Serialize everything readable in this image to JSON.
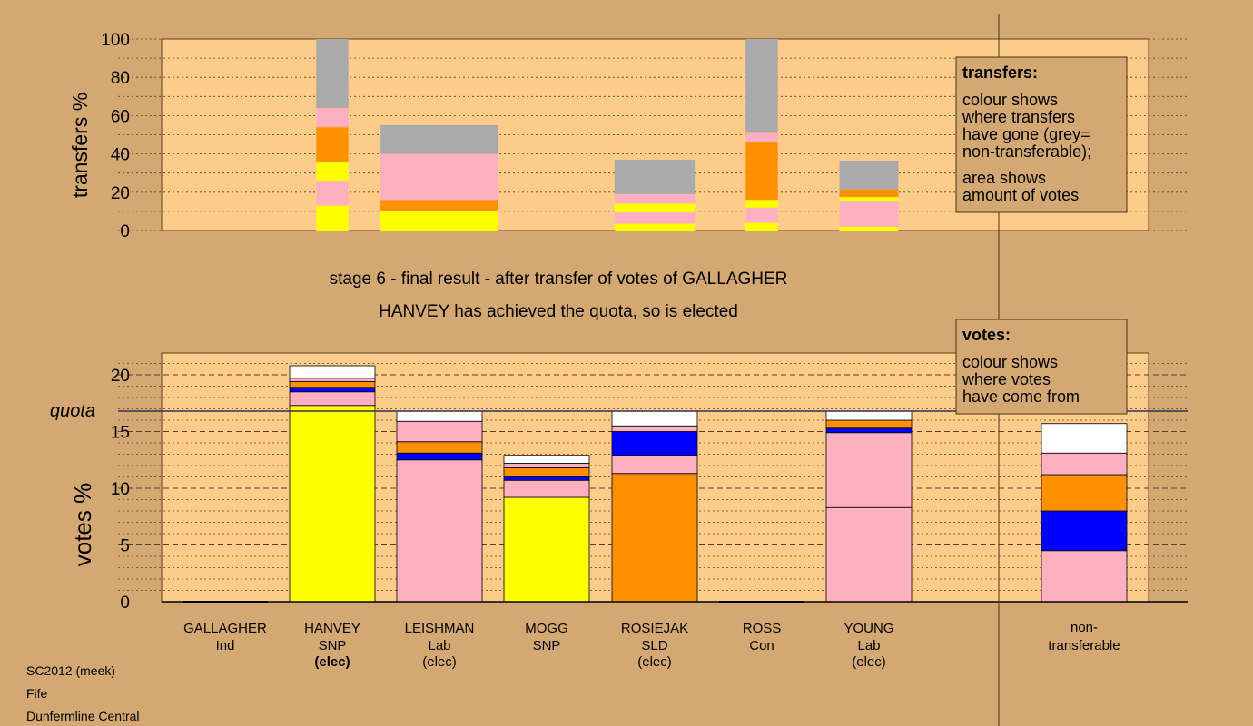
{
  "colors": {
    "background": "#d4a872",
    "plot_background": "#fdcc8a",
    "yellow": "#ffff00",
    "pink": "#ffb0c0",
    "orange": "#ff9000",
    "blue": "#0000ff",
    "white": "#ffffff",
    "grey": "#aaaaaa"
  },
  "captions": {
    "stage_line": "stage 6 - final result - after transfer of votes of GALLAGHER",
    "elected_line": "HANVEY has achieved the quota, so is elected"
  },
  "footer": {
    "line1": "SC2012 (meek)",
    "line2": "Fife",
    "line3": "Dunfermline Central"
  },
  "legend_transfers": {
    "title": "transfers:",
    "lines1": [
      "colour shows",
      "where transfers",
      "have gone (grey=",
      "non-transferable);"
    ],
    "lines2": [
      "area shows",
      "amount of votes"
    ]
  },
  "legend_votes": {
    "title": "votes:",
    "lines": [
      "colour shows",
      "where votes",
      "have come from"
    ]
  },
  "candidates": [
    {
      "name": "GALLAGHER",
      "party": "Ind",
      "status": ""
    },
    {
      "name": "HANVEY",
      "party": "SNP",
      "status": "(elec)",
      "status_bold": true
    },
    {
      "name": "LEISHMAN",
      "party": "Lab",
      "status": "(elec)"
    },
    {
      "name": "MOGG",
      "party": "SNP",
      "status": ""
    },
    {
      "name": "ROSIEJAK",
      "party": "SLD",
      "status": "(elec)"
    },
    {
      "name": "ROSS",
      "party": "Con",
      "status": ""
    },
    {
      "name": "YOUNG",
      "party": "Lab",
      "status": "(elec)"
    }
  ],
  "nontransferable_label": [
    "non-",
    "transferable"
  ],
  "chart_data": [
    {
      "type": "bar",
      "stacked": true,
      "ylabel": "transfers %",
      "ylim": [
        0,
        100
      ],
      "yticks": [
        0,
        20,
        40,
        60,
        80,
        100
      ],
      "bars": [
        {
          "slot": 1,
          "width_share": 0.3,
          "segments": [
            {
              "color": "yellow",
              "value": 13
            },
            {
              "color": "pink",
              "value": 13
            },
            {
              "color": "yellow",
              "value": 10
            },
            {
              "color": "orange",
              "value": 18
            },
            {
              "color": "pink",
              "value": 10
            },
            {
              "color": "grey",
              "value": 36
            }
          ]
        },
        {
          "slot": 2,
          "width_share": 1.1,
          "segments": [
            {
              "color": "yellow",
              "value": 10
            },
            {
              "color": "orange",
              "value": 6
            },
            {
              "color": "pink",
              "value": 24
            },
            {
              "color": "grey",
              "value": 15
            }
          ]
        },
        {
          "slot": 4,
          "width_share": 0.75,
          "segments": [
            {
              "color": "yellow",
              "value": 3.5
            },
            {
              "color": "pink",
              "value": 6
            },
            {
              "color": "yellow",
              "value": 4.5
            },
            {
              "color": "pink",
              "value": 5
            },
            {
              "color": "grey",
              "value": 18
            }
          ]
        },
        {
          "slot": 5,
          "width_share": 0.3,
          "segments": [
            {
              "color": "yellow",
              "value": 4
            },
            {
              "color": "pink",
              "value": 8
            },
            {
              "color": "yellow",
              "value": 4
            },
            {
              "color": "orange",
              "value": 30
            },
            {
              "color": "pink",
              "value": 5
            },
            {
              "color": "grey",
              "value": 49
            }
          ]
        },
        {
          "slot": 6,
          "width_share": 0.55,
          "segments": [
            {
              "color": "yellow",
              "value": 2
            },
            {
              "color": "pink",
              "value": 13.5
            },
            {
              "color": "yellow",
              "value": 2
            },
            {
              "color": "orange",
              "value": 4
            },
            {
              "color": "grey",
              "value": 15
            }
          ]
        }
      ]
    },
    {
      "type": "bar",
      "stacked": true,
      "ylabel": "votes %",
      "ylim": [
        0,
        22
      ],
      "yticks": [
        0,
        5,
        10,
        15,
        20
      ],
      "quota_label": "quota",
      "quota": 16.8,
      "bars": [
        {
          "slot": 0,
          "segments": []
        },
        {
          "slot": 1,
          "segments": [
            {
              "color": "yellow",
              "value": 17.3
            },
            {
              "color": "pink",
              "value": 1.2
            },
            {
              "color": "blue",
              "value": 0.4
            },
            {
              "color": "orange",
              "value": 0.5
            },
            {
              "color": "pink",
              "value": 0.3
            },
            {
              "color": "white",
              "value": 1.1
            }
          ]
        },
        {
          "slot": 2,
          "segments": [
            {
              "color": "pink",
              "value": 12.5
            },
            {
              "color": "blue",
              "value": 0.6
            },
            {
              "color": "orange",
              "value": 1.0
            },
            {
              "color": "pink",
              "value": 1.8
            },
            {
              "color": "white",
              "value": 0.9
            }
          ]
        },
        {
          "slot": 3,
          "segments": [
            {
              "color": "yellow",
              "value": 9.2
            },
            {
              "color": "pink",
              "value": 1.5
            },
            {
              "color": "blue",
              "value": 0.3
            },
            {
              "color": "orange",
              "value": 0.8
            },
            {
              "color": "pink",
              "value": 0.4
            },
            {
              "color": "white",
              "value": 0.7
            }
          ]
        },
        {
          "slot": 4,
          "segments": [
            {
              "color": "orange",
              "value": 11.3
            },
            {
              "color": "pink",
              "value": 1.6
            },
            {
              "color": "blue",
              "value": 2.1
            },
            {
              "color": "pink",
              "value": 0.5
            },
            {
              "color": "white",
              "value": 1.3
            }
          ]
        },
        {
          "slot": 5,
          "segments": []
        },
        {
          "slot": 6,
          "segments": [
            {
              "color": "pink",
              "value": 8.3
            },
            {
              "color": "pink",
              "value": 6.6
            },
            {
              "color": "blue",
              "value": 0.4
            },
            {
              "color": "orange",
              "value": 0.7
            },
            {
              "color": "white",
              "value": 0.8
            }
          ]
        },
        {
          "slot": 8,
          "segments": [
            {
              "color": "pink",
              "value": 4.5
            },
            {
              "color": "blue",
              "value": 3.5
            },
            {
              "color": "orange",
              "value": 3.2
            },
            {
              "color": "pink",
              "value": 1.9
            },
            {
              "color": "white",
              "value": 2.6
            }
          ]
        }
      ]
    }
  ]
}
